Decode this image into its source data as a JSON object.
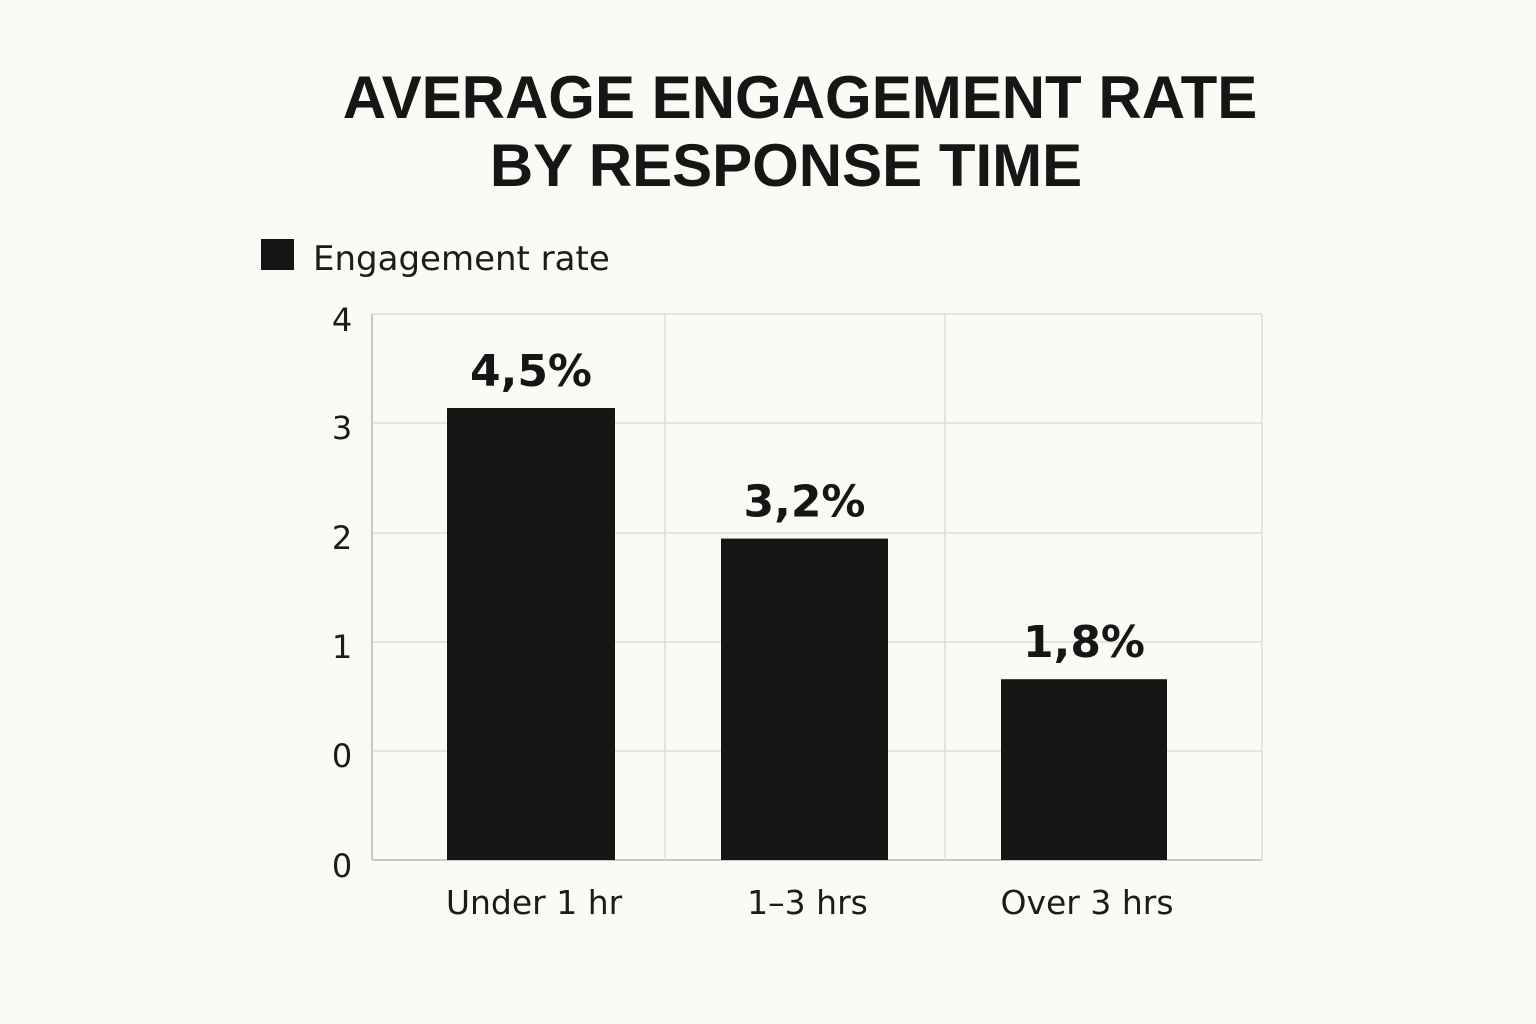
{
  "chart_data": {
    "type": "bar",
    "title_lines": [
      "AVERAGE ENGAGEMENT RATE",
      "BY RESPONSE TIME"
    ],
    "categories": [
      "Under 1 hr",
      "1–3 hrs",
      "Over 3 hrs"
    ],
    "series": [
      {
        "name": "Engagement rate",
        "values": [
          4.5,
          3.2,
          1.8
        ],
        "data_labels": [
          "4,5%",
          "3,2%",
          "1,8%"
        ],
        "color": "#161616"
      }
    ],
    "y_tick_labels": [
      "0",
      "0",
      "1",
      "2",
      "3",
      "4"
    ],
    "xlabel": "",
    "ylabel": "",
    "grid": true,
    "legend_position": "top-left"
  },
  "colors": {
    "background": "#fbfaf5",
    "bar": "#161616",
    "grid": "#dcdcdc",
    "text": "#1c1c1c"
  }
}
